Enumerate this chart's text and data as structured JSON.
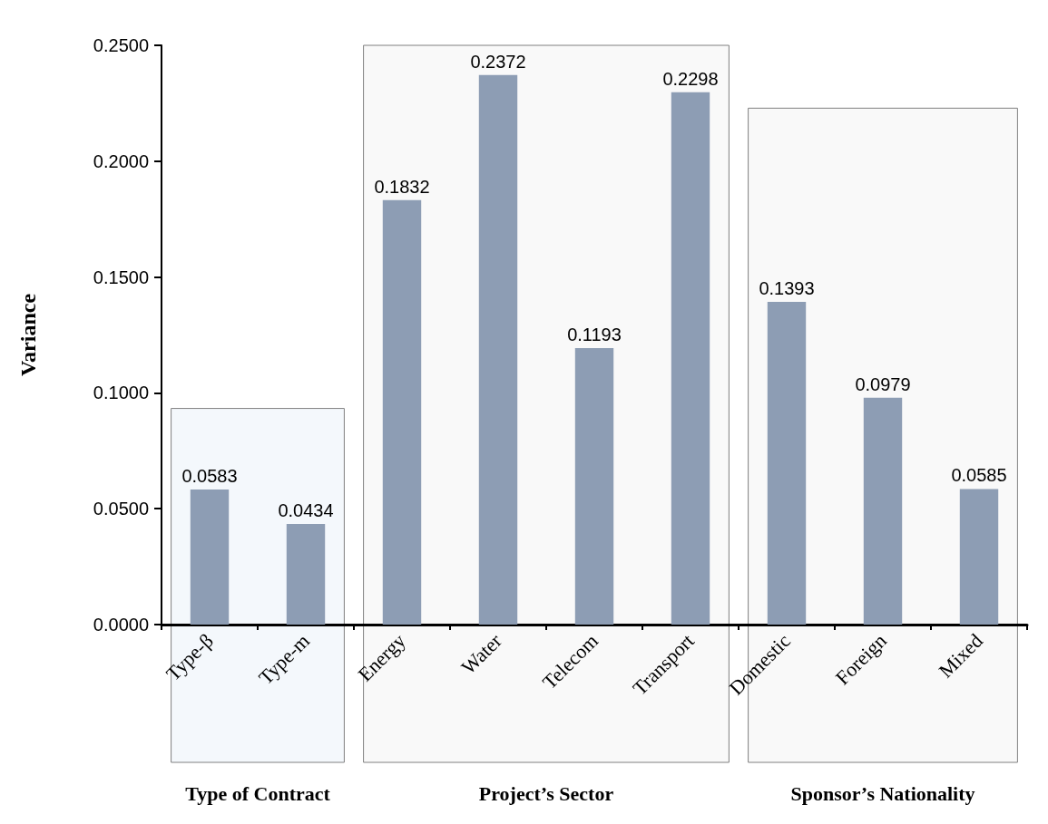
{
  "chart_data": {
    "type": "bar",
    "ylabel": "Variance",
    "categories": [
      "Type-β",
      "Type-m",
      "Energy",
      "Water",
      "Telecom",
      "Transport",
      "Domestic",
      "Foreign",
      "Mixed"
    ],
    "values": [
      0.0583,
      0.0434,
      0.1832,
      0.2372,
      0.1193,
      0.2298,
      0.1393,
      0.0979,
      0.0585
    ],
    "color": "#8d9db4",
    "data_labels": true,
    "ylim": [
      0,
      0.25
    ],
    "yticks": [
      {
        "value": 0,
        "label": "0.0000"
      },
      {
        "value": 0.05,
        "label": "0.0500"
      },
      {
        "value": 0.1,
        "label": "0.1000"
      },
      {
        "value": 0.15,
        "label": "0.1500"
      },
      {
        "value": 0.2,
        "label": "0.2000"
      },
      {
        "value": 0.25,
        "label": "0.2500"
      }
    ],
    "grid": false,
    "bands": [
      {
        "axis": "x",
        "from": "Type-β",
        "to": "Type-m",
        "label": "Type of Contract",
        "color": "#f4f8fc"
      },
      {
        "axis": "x",
        "from": "Energy",
        "to": "Transport",
        "label": "Project’s Sector",
        "color": "#f9f9f9"
      },
      {
        "axis": "x",
        "from": "Domestic",
        "to": "Mixed",
        "label": "Sponsor’s Nationality",
        "color": "#f9f9f9"
      }
    ]
  }
}
